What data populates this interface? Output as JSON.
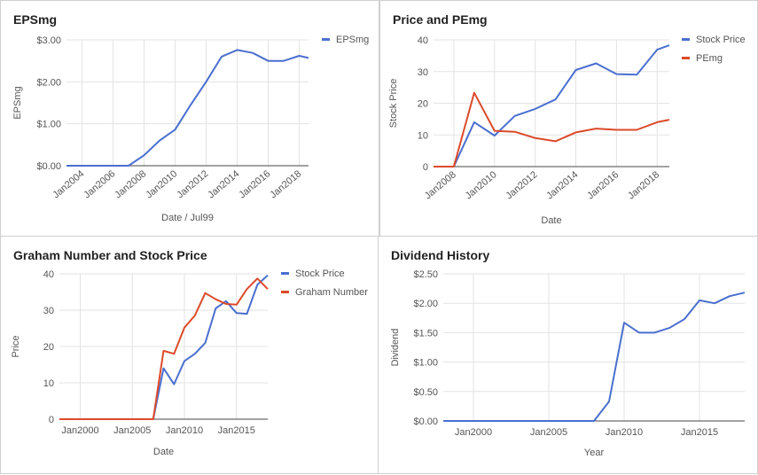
{
  "chart_data": [
    {
      "type": "line",
      "title": "EPSmg",
      "xlabel": "Date / Jul99",
      "ylabel": "EPSmg",
      "x": [
        2003,
        2004,
        2005,
        2006,
        2007,
        2008,
        2009,
        2010,
        2011,
        2012,
        2013,
        2014,
        2015,
        2016,
        2017,
        2018,
        2018.6
      ],
      "series": [
        {
          "name": "EPSmg",
          "color": "#4a6fcf",
          "values": [
            0,
            0,
            0,
            0,
            0,
            0.25,
            0.6,
            0.86,
            1.45,
            2.0,
            2.6,
            2.76,
            2.69,
            2.5,
            2.5,
            2.62,
            2.57
          ]
        }
      ],
      "xlim": [
        2003,
        2018.6
      ],
      "ylim": [
        0,
        3
      ],
      "yticks": [
        0,
        1,
        2,
        3
      ],
      "ytick_labels": [
        "$0.00",
        "$1.00",
        "$2.00",
        "$3.00"
      ],
      "xticks": [
        2004,
        2006,
        2008,
        2010,
        2012,
        2014,
        2016,
        2018
      ],
      "xtick_labels": [
        "Jan2004",
        "Jan2006",
        "Jan2008",
        "Jan2010",
        "Jan2012",
        "Jan2014",
        "Jan2016",
        "Jan2018"
      ],
      "legend": "right",
      "grid": true
    },
    {
      "type": "line",
      "title": "Price and PEmg",
      "xlabel": "Date",
      "ylabel": "Stock Price",
      "x": [
        2007,
        2008,
        2009,
        2010,
        2011,
        2012,
        2013,
        2014,
        2015,
        2016,
        2017,
        2018,
        2018.6
      ],
      "series": [
        {
          "name": "Stock Price",
          "color": "#4a6fcf",
          "values": [
            0,
            0,
            14,
            9.8,
            16,
            18.2,
            21.2,
            30.5,
            32.6,
            29.2,
            29,
            36.9,
            38.3
          ]
        },
        {
          "name": "PEmg",
          "color": "#dc4a2a",
          "values": [
            0,
            0,
            23.3,
            11.3,
            11,
            9,
            8,
            10.8,
            12,
            11.6,
            11.6,
            14,
            14.8
          ]
        }
      ],
      "xlim": [
        2007,
        2018.6
      ],
      "ylim": [
        0,
        40
      ],
      "yticks": [
        0,
        10,
        20,
        30,
        40
      ],
      "ytick_labels": [
        "0",
        "10",
        "20",
        "30",
        "40"
      ],
      "xticks": [
        2008,
        2010,
        2012,
        2014,
        2016,
        2018
      ],
      "xtick_labels": [
        "Jan2008",
        "Jan2010",
        "Jan2012",
        "Jan2014",
        "Jan2016",
        "Jan2018"
      ],
      "legend": "right",
      "grid": true
    },
    {
      "type": "line",
      "title": "Graham Number and Stock Price",
      "xlabel": "Date",
      "ylabel": "Price",
      "x": [
        1998,
        2000,
        2002,
        2004,
        2006,
        2007,
        2008,
        2009,
        2010,
        2011,
        2012,
        2013,
        2014,
        2015,
        2016,
        2017,
        2018
      ],
      "series": [
        {
          "name": "Stock Price",
          "color": "#4a6fcf",
          "values": [
            0,
            0,
            0,
            0,
            0,
            0,
            14,
            9.6,
            16,
            18,
            21,
            30.5,
            32.5,
            29.2,
            29,
            37,
            39.6
          ]
        },
        {
          "name": "Graham Number",
          "color": "#dc4a2a",
          "values": [
            0,
            0,
            0,
            0,
            0,
            0,
            18.8,
            18,
            25.2,
            28.5,
            34.7,
            33,
            31.7,
            31.5,
            35.8,
            38.7,
            35.8
          ]
        }
      ],
      "xlim": [
        1998,
        2018
      ],
      "ylim": [
        0,
        40
      ],
      "yticks": [
        0,
        10,
        20,
        30,
        40
      ],
      "ytick_labels": [
        "0",
        "10",
        "20",
        "30",
        "40"
      ],
      "xticks": [
        2000,
        2005,
        2010,
        2015
      ],
      "xtick_labels": [
        "Jan2000",
        "Jan2005",
        "Jan2010",
        "Jan2015"
      ],
      "legend": "right",
      "grid": true
    },
    {
      "type": "line",
      "title": "Dividend History",
      "xlabel": "Year",
      "ylabel": "Dividend",
      "x": [
        1998,
        2000,
        2002,
        2004,
        2006,
        2007,
        2008,
        2009,
        2010,
        2011,
        2012,
        2013,
        2014,
        2015,
        2016,
        2017,
        2018
      ],
      "series": [
        {
          "name": "Dividend",
          "color": "#4a6fcf",
          "values": [
            0,
            0,
            0,
            0,
            0,
            0,
            0,
            0.33,
            1.67,
            1.5,
            1.5,
            1.58,
            1.73,
            2.05,
            2.0,
            2.12,
            2.18
          ]
        }
      ],
      "xlim": [
        1998,
        2018
      ],
      "ylim": [
        0,
        2.5
      ],
      "yticks": [
        0,
        0.5,
        1,
        1.5,
        2,
        2.5
      ],
      "ytick_labels": [
        "$0.00",
        "$0.50",
        "$1.00",
        "$1.50",
        "$2.00",
        "$2.50"
      ],
      "xticks": [
        2000,
        2005,
        2010,
        2015
      ],
      "xtick_labels": [
        "Jan2000",
        "Jan2005",
        "Jan2010",
        "Jan2015"
      ],
      "legend": "none",
      "grid": true
    }
  ]
}
